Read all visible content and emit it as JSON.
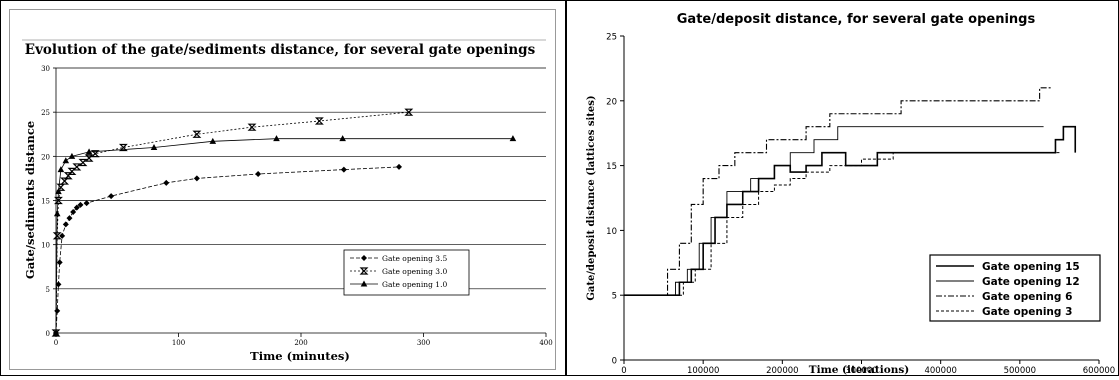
{
  "chart_data": [
    {
      "type": "line",
      "title": "Evolution of the gate/sediments distance, for several gate openings",
      "xlabel": "Time (minutes)",
      "ylabel": "Gate/sediments distance",
      "xlim": [
        0,
        400
      ],
      "ylim": [
        0,
        30
      ],
      "xticks": [
        "0",
        "100",
        "200",
        "300",
        "400"
      ],
      "yticks": [
        "0",
        "5",
        "10",
        "15",
        "20",
        "25",
        "30"
      ],
      "grid": "horizontal",
      "legend_position": "lower-right",
      "series": [
        {
          "name": "Gate opening 3.5",
          "marker": "diamond",
          "dash": "4,2",
          "x": [
            0,
            1,
            2,
            3,
            5,
            8,
            11,
            14,
            17,
            20,
            25,
            45,
            90,
            115,
            165,
            235,
            280
          ],
          "y": [
            0,
            2.5,
            5.5,
            8,
            11,
            12.3,
            13,
            13.7,
            14.2,
            14.5,
            14.7,
            15.5,
            17,
            17.5,
            18,
            18.5,
            18.8
          ]
        },
        {
          "name": "Gate opening 3.0",
          "marker": "bowtie",
          "dash": "2,2",
          "x": [
            0,
            1,
            2,
            4,
            7,
            10,
            13,
            17,
            22,
            27,
            32,
            55,
            115,
            160,
            215,
            288
          ],
          "y": [
            0,
            11,
            15,
            16.5,
            17.2,
            17.8,
            18.3,
            18.8,
            19.3,
            19.8,
            20.3,
            21,
            22.5,
            23.3,
            24,
            25
          ]
        },
        {
          "name": "Gate opening 1.0",
          "marker": "triangle",
          "dash": "",
          "x": [
            0,
            1,
            2,
            4,
            8,
            13,
            27,
            80,
            128,
            180,
            234,
            373
          ],
          "y": [
            0,
            13.5,
            16,
            18.5,
            19.5,
            20,
            20.5,
            21,
            21.7,
            22,
            22,
            22
          ]
        }
      ]
    },
    {
      "type": "line",
      "title": "Gate/deposit distance, for several gate openings",
      "xlabel": "Time (iterations)",
      "ylabel": "Gate/deposit distance (lattices sites)",
      "xlim": [
        0,
        600000
      ],
      "ylim": [
        0,
        25
      ],
      "xticks": [
        "0",
        "100000",
        "200000",
        "300000",
        "400000",
        "500000",
        "600000"
      ],
      "yticks": [
        "0",
        "5",
        "10",
        "15",
        "20",
        "25"
      ],
      "grid": "none",
      "legend_position": "lower-right",
      "series": [
        {
          "name": "Gate opening 15",
          "dash": "",
          "width": 1.6,
          "x": [
            0,
            55000,
            70000,
            85000,
            100000,
            115000,
            130000,
            150000,
            170000,
            190000,
            210000,
            230000,
            250000,
            280000,
            320000,
            380000,
            450000,
            520000,
            545000,
            555000,
            570000
          ],
          "y": [
            5,
            5,
            6,
            7,
            9,
            11,
            12,
            13,
            14,
            15,
            14.5,
            15,
            16,
            15,
            16,
            16,
            16,
            16,
            17,
            18,
            16
          ]
        },
        {
          "name": "Gate opening 12",
          "dash": "",
          "width": 0.9,
          "x": [
            0,
            50000,
            65000,
            80000,
            95000,
            110000,
            130000,
            160000,
            190000,
            210000,
            240000,
            270000,
            300000,
            340000,
            390000,
            440000,
            500000,
            530000
          ],
          "y": [
            5,
            5,
            6,
            7,
            9,
            11,
            13,
            14,
            15,
            16,
            17,
            18,
            18,
            18,
            18,
            18,
            18,
            18
          ]
        },
        {
          "name": "Gate opening 6",
          "dash": "6,2,2,2",
          "width": 1.1,
          "x": [
            0,
            40000,
            55000,
            70000,
            85000,
            100000,
            120000,
            140000,
            160000,
            180000,
            200000,
            230000,
            260000,
            300000,
            350000,
            400000,
            450000,
            490000,
            510000,
            525000,
            540000
          ],
          "y": [
            5,
            5,
            7,
            9,
            12,
            14,
            15,
            16,
            16,
            17,
            17,
            18,
            19,
            19,
            20,
            20,
            20,
            20,
            20,
            21,
            21
          ]
        },
        {
          "name": "Gate opening 3",
          "dash": "3,2",
          "width": 1.0,
          "x": [
            0,
            60000,
            75000,
            90000,
            110000,
            130000,
            150000,
            170000,
            190000,
            210000,
            230000,
            260000,
            300000,
            340000,
            400000,
            450000,
            500000,
            550000
          ],
          "y": [
            5,
            5,
            6,
            7,
            9,
            11,
            12,
            13,
            13.5,
            14,
            14.5,
            15,
            15.5,
            16,
            16,
            16,
            16,
            16
          ]
        }
      ]
    }
  ]
}
